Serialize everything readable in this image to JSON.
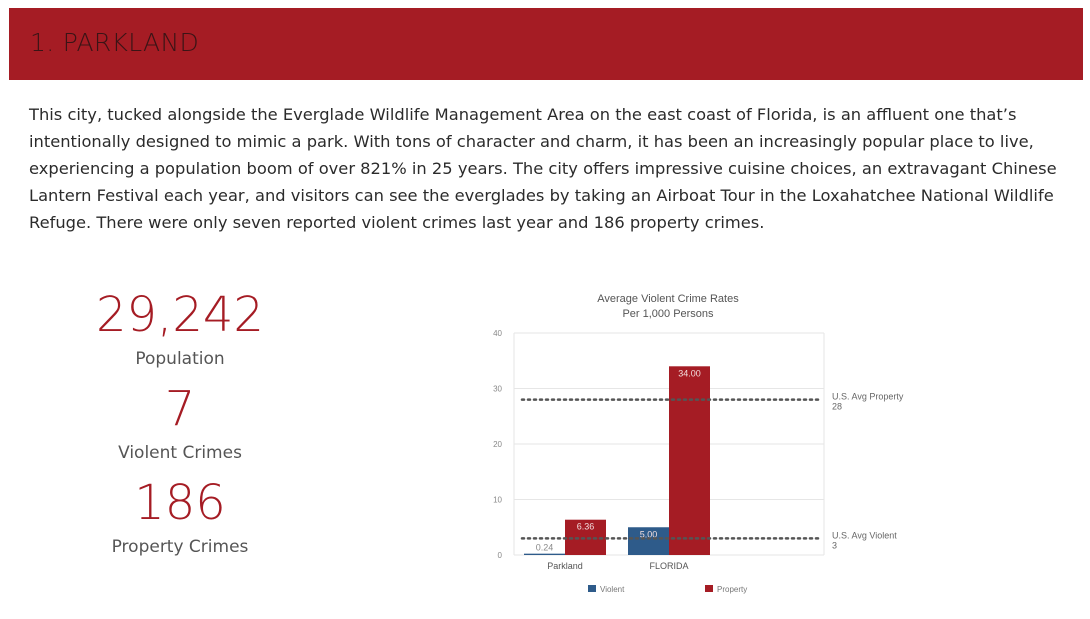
{
  "header": {
    "title": "1.  PARKLAND"
  },
  "description": "This city, tucked alongside the Everglade Wildlife Management Area on the east coast of Florida, is an affluent one that’s intentionally designed to mimic a park. With tons of character and charm, it has been an increasingly popular place to live, experiencing a population boom of over 821% in 25 years. The city offers impressive cuisine choices, an extravagant Chinese Lantern Festival each year, and visitors can see the everglades by taking an Airboat Tour in the Loxahatchee National Wildlife Refuge. There were only seven reported violent crimes last year and 186 property crimes.",
  "stats": {
    "population": {
      "value": "29,242",
      "label": "Population"
    },
    "violent": {
      "value": "7",
      "label": "Violent Crimes"
    },
    "property": {
      "value": "186",
      "label": "Property Crimes"
    }
  },
  "colors": {
    "brand": "#a51c24",
    "violent": "#2e5b8a",
    "property": "#a51c24",
    "reference": "#555555"
  },
  "chart_data": {
    "type": "bar",
    "title": "Average Violent Crime Rates",
    "subtitle": "Per 1,000 Persons",
    "categories": [
      "Parkland",
      "FLORIDA"
    ],
    "series": [
      {
        "name": "Violent",
        "values": [
          0.24,
          5.0
        ],
        "labels": [
          "0.24",
          "5.00"
        ]
      },
      {
        "name": "Property",
        "values": [
          6.36,
          34.0
        ],
        "labels": [
          "6.36",
          "34.00"
        ]
      }
    ],
    "ylim": [
      0,
      40
    ],
    "yticks": [
      "0",
      "10",
      "20",
      "30",
      "40"
    ],
    "reference_lines": [
      {
        "name": "U.S. Avg Property",
        "value": 28,
        "label": "28"
      },
      {
        "name": "U.S. Avg Violent",
        "value": 3,
        "label": "3"
      }
    ],
    "legend": "bottom",
    "grid": true
  }
}
